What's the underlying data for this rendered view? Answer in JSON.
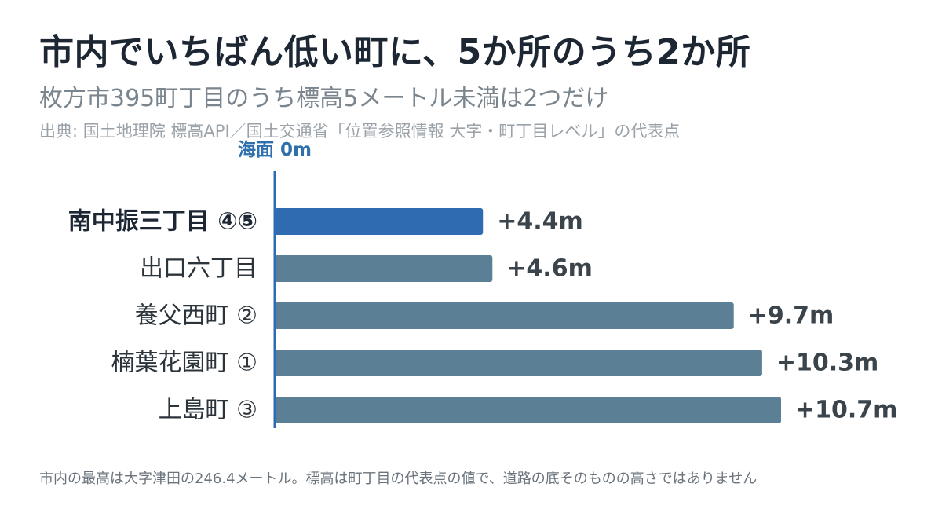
{
  "header": {
    "title": "市内でいちばん低い町に、5か所のうち2か所",
    "subtitle": "枚方市395町丁目のうち標高5メートル未満は2つだけ",
    "source": "出典: 国土地理院 標高API／国土交通省「位置参照情報 大字・町丁目レベル」の代表点"
  },
  "footnote": "市内の最高は大字津田の246.4メートル。標高は町丁目の代表点の値で、道路の底そのものの高さではありません",
  "colors": {
    "highlight": "#2e6bb0",
    "bar": "#5b7f94",
    "axis": "#2e6bb0",
    "zero_label": "#2e6fae"
  },
  "chart_data": {
    "type": "bar",
    "orientation": "horizontal",
    "zero_line_label": "海面 0m",
    "categories": [
      "南中振三丁目 ④⑤",
      "出口六丁目",
      "養父西町 ②",
      "楠葉花園町 ①",
      "上島町 ③"
    ],
    "values": [
      4.4,
      4.6,
      9.7,
      10.3,
      10.7
    ],
    "value_labels": [
      "+4.4m",
      "+4.6m",
      "+9.7m",
      "+10.3m",
      "+10.7m"
    ],
    "highlighted": [
      true,
      false,
      false,
      false,
      false
    ],
    "unit": "m",
    "xlim": [
      0,
      10.7
    ],
    "grid": false,
    "legend": "none"
  }
}
